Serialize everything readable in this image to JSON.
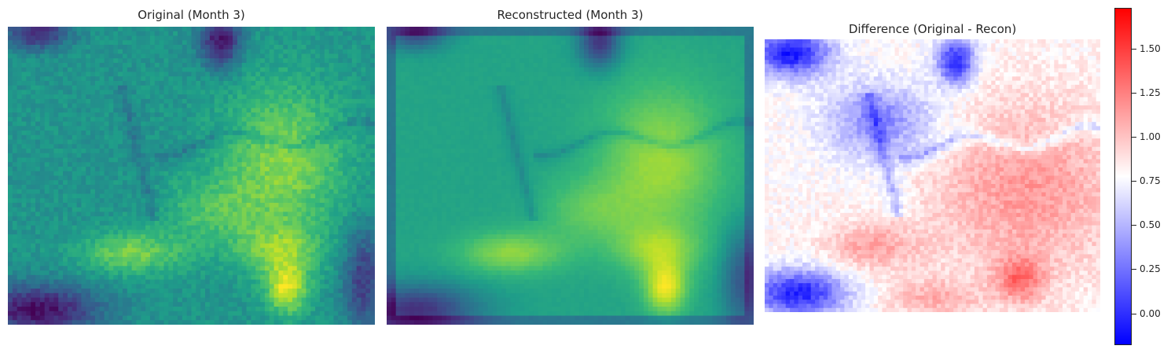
{
  "chart_data": [
    {
      "type": "heatmap",
      "title": "Original (Month 3)",
      "colormap": "viridis",
      "axis": "off",
      "grid": false,
      "raster": {
        "cols": 80,
        "rows": 66,
        "field": "original"
      }
    },
    {
      "type": "heatmap",
      "title": "Reconstructed (Month 3)",
      "colormap": "viridis",
      "axis": "off",
      "grid": false,
      "raster": {
        "cols": 80,
        "rows": 66,
        "field": "reconstructed"
      }
    },
    {
      "type": "heatmap",
      "title": "Difference (Original - Recon)",
      "colormap": "bwr",
      "axis": "off",
      "grid": false,
      "raster": {
        "cols": 80,
        "rows": 66,
        "field": "difference"
      },
      "colorbar": {
        "placement": "right",
        "vmin": -0.18,
        "vmax": 1.73,
        "ticks": [
          0.0,
          0.25,
          0.5,
          0.75,
          1.0,
          1.25,
          1.5
        ],
        "tick_labels": [
          "0.00",
          "0.25",
          "0.50",
          "0.75",
          "1.00",
          "1.25",
          "1.50"
        ]
      }
    }
  ]
}
